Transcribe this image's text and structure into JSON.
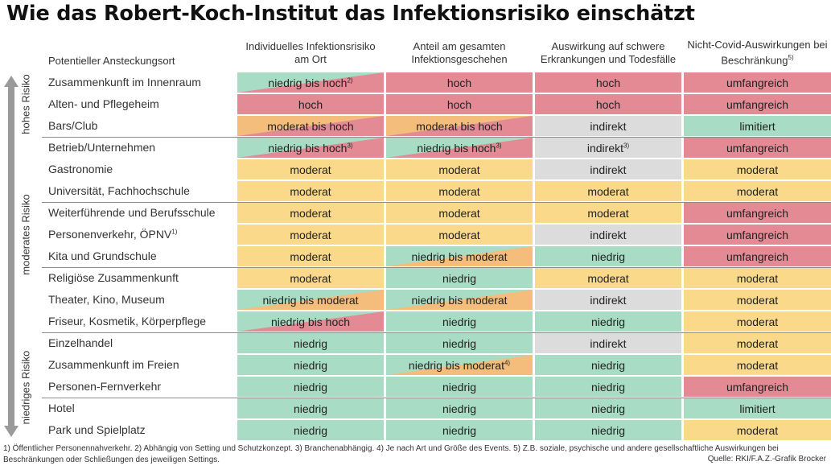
{
  "title": "Wie das Robert-Koch-Institut das Infektionsrisiko einschätzt",
  "colors": {
    "red": "#e38a95",
    "orange": "#f4bd7b",
    "yellow": "#fbd98b",
    "green": "#a8dcc4",
    "gray": "#dcdcdc"
  },
  "headers": {
    "place": "Potentieller Ansteckungsort",
    "col1": "Individuelles Infektionsrisiko am Ort",
    "col2": "Anteil am gesamten Infektionsgeschehen",
    "col3": "Auswirkung auf schwere Erkrankungen und Todesfälle",
    "col4": "Nicht-Covid-Auswirkungen bei Beschränkung",
    "col4_sup": "5)"
  },
  "groups": [
    {
      "label": "hohes Risiko"
    },
    {
      "label": "moderates Risiko"
    },
    {
      "label": "niedriges Risiko"
    }
  ],
  "rows": [
    {
      "place": "Zusammenkunft im Innenraum",
      "place_sup": "",
      "cells": [
        {
          "text": "niedrig bis hoch",
          "sup": "2)",
          "c1": "green",
          "c2": "red"
        },
        {
          "text": "hoch",
          "sup": "",
          "c1": "red",
          "c2": "red"
        },
        {
          "text": "hoch",
          "sup": "",
          "c1": "red",
          "c2": "red"
        },
        {
          "text": "umfangreich",
          "sup": "",
          "c1": "red",
          "c2": "red"
        }
      ]
    },
    {
      "place": "Alten- und Pflegeheim",
      "place_sup": "",
      "cells": [
        {
          "text": "hoch",
          "sup": "",
          "c1": "red",
          "c2": "red"
        },
        {
          "text": "hoch",
          "sup": "",
          "c1": "red",
          "c2": "red"
        },
        {
          "text": "hoch",
          "sup": "",
          "c1": "red",
          "c2": "red"
        },
        {
          "text": "umfangreich",
          "sup": "",
          "c1": "red",
          "c2": "red"
        }
      ]
    },
    {
      "place": "Bars/Club",
      "place_sup": "",
      "cells": [
        {
          "text": "moderat bis hoch",
          "sup": "",
          "c1": "orange",
          "c2": "red"
        },
        {
          "text": "moderat bis hoch",
          "sup": "",
          "c1": "orange",
          "c2": "red"
        },
        {
          "text": "indirekt",
          "sup": "",
          "c1": "gray",
          "c2": "gray"
        },
        {
          "text": "limitiert",
          "sup": "",
          "c1": "green",
          "c2": "green"
        }
      ]
    },
    {
      "place": "Betrieb/Unternehmen",
      "place_sup": "",
      "cells": [
        {
          "text": "niedrig bis hoch",
          "sup": "3)",
          "c1": "green",
          "c2": "red"
        },
        {
          "text": "niedrig bis hoch",
          "sup": "3)",
          "c1": "green",
          "c2": "red"
        },
        {
          "text": "indirekt",
          "sup": "3)",
          "c1": "gray",
          "c2": "gray"
        },
        {
          "text": "umfangreich",
          "sup": "",
          "c1": "red",
          "c2": "red"
        }
      ]
    },
    {
      "place": "Gastronomie",
      "place_sup": "",
      "cells": [
        {
          "text": "moderat",
          "sup": "",
          "c1": "yellow",
          "c2": "yellow"
        },
        {
          "text": "moderat",
          "sup": "",
          "c1": "yellow",
          "c2": "yellow"
        },
        {
          "text": "indirekt",
          "sup": "",
          "c1": "gray",
          "c2": "gray"
        },
        {
          "text": "moderat",
          "sup": "",
          "c1": "yellow",
          "c2": "yellow"
        }
      ]
    },
    {
      "place": "Universität, Fachhochschule",
      "place_sup": "",
      "cells": [
        {
          "text": "moderat",
          "sup": "",
          "c1": "yellow",
          "c2": "yellow"
        },
        {
          "text": "moderat",
          "sup": "",
          "c1": "yellow",
          "c2": "yellow"
        },
        {
          "text": "moderat",
          "sup": "",
          "c1": "yellow",
          "c2": "yellow"
        },
        {
          "text": "moderat",
          "sup": "",
          "c1": "yellow",
          "c2": "yellow"
        }
      ]
    },
    {
      "place": "Weiterführende und Berufsschule",
      "place_sup": "",
      "cells": [
        {
          "text": "moderat",
          "sup": "",
          "c1": "yellow",
          "c2": "yellow"
        },
        {
          "text": "moderat",
          "sup": "",
          "c1": "yellow",
          "c2": "yellow"
        },
        {
          "text": "moderat",
          "sup": "",
          "c1": "yellow",
          "c2": "yellow"
        },
        {
          "text": "umfangreich",
          "sup": "",
          "c1": "red",
          "c2": "red"
        }
      ]
    },
    {
      "place": "Personenverkehr, ÖPNV",
      "place_sup": "1)",
      "cells": [
        {
          "text": "moderat",
          "sup": "",
          "c1": "yellow",
          "c2": "yellow"
        },
        {
          "text": "moderat",
          "sup": "",
          "c1": "yellow",
          "c2": "yellow"
        },
        {
          "text": "indirekt",
          "sup": "",
          "c1": "gray",
          "c2": "gray"
        },
        {
          "text": "umfangreich",
          "sup": "",
          "c1": "red",
          "c2": "red"
        }
      ]
    },
    {
      "place": "Kita und Grundschule",
      "place_sup": "",
      "cells": [
        {
          "text": "moderat",
          "sup": "",
          "c1": "yellow",
          "c2": "yellow"
        },
        {
          "text": "niedrig bis moderat",
          "sup": "",
          "c1": "green",
          "c2": "orange"
        },
        {
          "text": "niedrig",
          "sup": "",
          "c1": "green",
          "c2": "green"
        },
        {
          "text": "umfangreich",
          "sup": "",
          "c1": "red",
          "c2": "red"
        }
      ]
    },
    {
      "place": "Religiöse Zusammenkunft",
      "place_sup": "",
      "cells": [
        {
          "text": "moderat",
          "sup": "",
          "c1": "yellow",
          "c2": "yellow"
        },
        {
          "text": "niedrig",
          "sup": "",
          "c1": "green",
          "c2": "green"
        },
        {
          "text": "moderat",
          "sup": "",
          "c1": "yellow",
          "c2": "yellow"
        },
        {
          "text": "moderat",
          "sup": "",
          "c1": "yellow",
          "c2": "yellow"
        }
      ]
    },
    {
      "place": "Theater, Kino, Museum",
      "place_sup": "",
      "cells": [
        {
          "text": "niedrig bis moderat",
          "sup": "",
          "c1": "green",
          "c2": "orange"
        },
        {
          "text": "niedrig bis moderat",
          "sup": "",
          "c1": "green",
          "c2": "orange"
        },
        {
          "text": "indirekt",
          "sup": "",
          "c1": "gray",
          "c2": "gray"
        },
        {
          "text": "moderat",
          "sup": "",
          "c1": "yellow",
          "c2": "yellow"
        }
      ]
    },
    {
      "place": "Friseur, Kosmetik, Körperpflege",
      "place_sup": "",
      "cells": [
        {
          "text": "niedrig bis hoch",
          "sup": "",
          "c1": "green",
          "c2": "red"
        },
        {
          "text": "niedrig",
          "sup": "",
          "c1": "green",
          "c2": "green"
        },
        {
          "text": "niedrig",
          "sup": "",
          "c1": "green",
          "c2": "green"
        },
        {
          "text": "moderat",
          "sup": "",
          "c1": "yellow",
          "c2": "yellow"
        }
      ]
    },
    {
      "place": "Einzelhandel",
      "place_sup": "",
      "cells": [
        {
          "text": "niedrig",
          "sup": "",
          "c1": "green",
          "c2": "green"
        },
        {
          "text": "niedrig",
          "sup": "",
          "c1": "green",
          "c2": "green"
        },
        {
          "text": "indirekt",
          "sup": "",
          "c1": "gray",
          "c2": "gray"
        },
        {
          "text": "moderat",
          "sup": "",
          "c1": "yellow",
          "c2": "yellow"
        }
      ]
    },
    {
      "place": "Zusammenkunft im Freien",
      "place_sup": "",
      "cells": [
        {
          "text": "niedrig",
          "sup": "",
          "c1": "green",
          "c2": "green"
        },
        {
          "text": "niedrig bis moderat",
          "sup": "4)",
          "c1": "green",
          "c2": "orange"
        },
        {
          "text": "niedrig",
          "sup": "",
          "c1": "green",
          "c2": "green"
        },
        {
          "text": "moderat",
          "sup": "",
          "c1": "yellow",
          "c2": "yellow"
        }
      ]
    },
    {
      "place": "Personen-Fernverkehr",
      "place_sup": "",
      "cells": [
        {
          "text": "niedrig",
          "sup": "",
          "c1": "green",
          "c2": "green"
        },
        {
          "text": "niedrig",
          "sup": "",
          "c1": "green",
          "c2": "green"
        },
        {
          "text": "niedrig",
          "sup": "",
          "c1": "green",
          "c2": "green"
        },
        {
          "text": "umfangreich",
          "sup": "",
          "c1": "red",
          "c2": "red"
        }
      ]
    },
    {
      "place": "Hotel",
      "place_sup": "",
      "cells": [
        {
          "text": "niedrig",
          "sup": "",
          "c1": "green",
          "c2": "green"
        },
        {
          "text": "niedrig",
          "sup": "",
          "c1": "green",
          "c2": "green"
        },
        {
          "text": "niedrig",
          "sup": "",
          "c1": "green",
          "c2": "green"
        },
        {
          "text": "limitiert",
          "sup": "",
          "c1": "green",
          "c2": "green"
        }
      ]
    },
    {
      "place": "Park und Spielplatz",
      "place_sup": "",
      "cells": [
        {
          "text": "niedrig",
          "sup": "",
          "c1": "green",
          "c2": "green"
        },
        {
          "text": "niedrig",
          "sup": "",
          "c1": "green",
          "c2": "green"
        },
        {
          "text": "niedrig",
          "sup": "",
          "c1": "green",
          "c2": "green"
        },
        {
          "text": "moderat",
          "sup": "",
          "c1": "yellow",
          "c2": "yellow"
        }
      ]
    }
  ],
  "footnote": "1) Öffentlicher Personennahverkehr. 2) Abhängig von Setting und Schutzkonzept. 3) Branchenabhängig. 4) Je nach Art und Größe des Events. 5) Z.B. soziale, psychische und andere gesellschaftliche Auswirkungen bei Beschränkungen oder Schließungen des jeweiligen Settings.",
  "source": "Quelle: RKI/F.A.Z.-Grafik Brocker"
}
